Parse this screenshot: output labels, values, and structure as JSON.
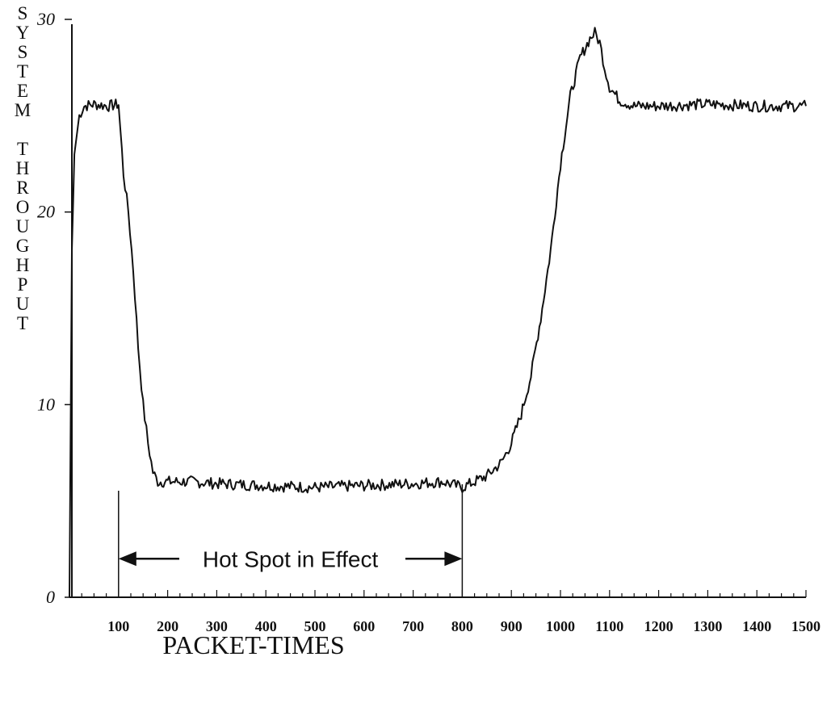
{
  "chart_data": {
    "type": "line",
    "xlabel": "PACKET-TIMES",
    "ylabel": "SYSTEM THROUGHPUT",
    "xlim": [
      0,
      1500
    ],
    "ylim": [
      0,
      30
    ],
    "xticks": [
      100,
      200,
      300,
      400,
      500,
      600,
      700,
      800,
      900,
      1000,
      1100,
      1200,
      1300,
      1400,
      1500
    ],
    "xtick_labels": [
      "100",
      "200",
      "300",
      "400",
      "500",
      "600",
      "700",
      "800",
      "900",
      "1000",
      "1100",
      "1200",
      "1300",
      "1400",
      "1500"
    ],
    "yticks": [
      0,
      10,
      20,
      30
    ],
    "ytick_labels": [
      "0",
      "10",
      "20",
      "30"
    ],
    "grid": false,
    "series": [
      {
        "x": [
          0,
          5,
          10,
          20,
          30,
          50,
          80,
          100,
          110,
          120,
          130,
          140,
          150,
          160,
          170,
          180,
          200,
          250,
          300,
          400,
          500,
          600,
          700,
          760,
          800,
          850,
          880,
          900,
          920,
          940,
          960,
          980,
          1000,
          1020,
          1040,
          1060,
          1070,
          1080,
          1090,
          1100,
          1120,
          1150,
          1200,
          1300,
          1400,
          1500
        ],
        "y": [
          0,
          18,
          23,
          25,
          25.5,
          25.6,
          25.5,
          25.6,
          22,
          20,
          17,
          13,
          10,
          8,
          6.5,
          6,
          6,
          6,
          5.9,
          5.8,
          5.7,
          5.8,
          5.9,
          6,
          5.7,
          6.3,
          7,
          8,
          9.5,
          11.5,
          14.5,
          18,
          22.5,
          26,
          28,
          29,
          29.3,
          28.8,
          27.5,
          26.5,
          25.8,
          25.5,
          25.5,
          25.6,
          25.5,
          25.5
        ]
      }
    ],
    "annotations": [
      {
        "text": "Hot Spot in Effect",
        "x_start": 100,
        "x_end": 800,
        "y": 2
      }
    ]
  }
}
